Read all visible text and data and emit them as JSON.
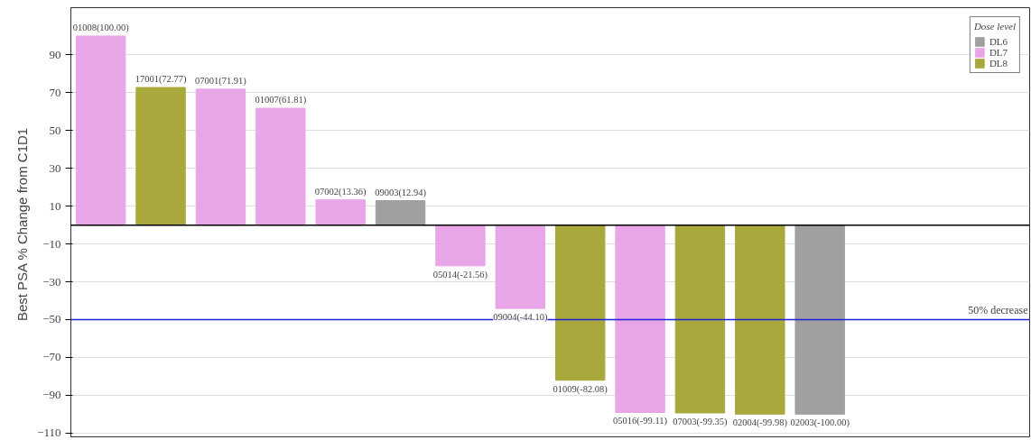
{
  "chart_data": {
    "type": "bar",
    "ylabel": "Best PSA % Change from  C1D1",
    "legend_title": "Dose level",
    "categories": [
      null,
      null,
      null,
      null,
      null,
      null,
      null,
      null,
      null,
      null,
      null,
      null,
      null,
      null,
      null,
      null
    ],
    "series": [
      {
        "name": "DL6",
        "color": "#a0a0a0",
        "values": [
          null,
          null,
          null,
          null,
          null,
          12.94,
          null,
          null,
          null,
          null,
          null,
          null,
          -100.0,
          null,
          null,
          null
        ],
        "value_labels": [
          null,
          null,
          null,
          null,
          null,
          "09003(12.94)",
          null,
          null,
          null,
          null,
          null,
          null,
          "02003(-100.00)",
          null,
          null,
          null
        ]
      },
      {
        "name": "DL7",
        "color": "#e8a6e8",
        "values": [
          100.0,
          null,
          71.91,
          61.81,
          13.36,
          null,
          -21.56,
          -44.1,
          null,
          -99.11,
          null,
          null,
          null,
          null,
          null,
          null
        ],
        "value_labels": [
          "01008(100.00)",
          null,
          "07001(71.91)",
          "01007(61.81)",
          "07002(13.36)",
          null,
          "05014(-21.56)",
          "09004(-44.10)",
          null,
          "05016(-99.11)",
          null,
          null,
          null,
          null,
          null,
          null
        ]
      },
      {
        "name": "DL8",
        "color": "#a8a83c",
        "values": [
          null,
          72.77,
          null,
          null,
          null,
          null,
          null,
          null,
          -82.08,
          null,
          -99.35,
          -99.98,
          null,
          null,
          null,
          null
        ],
        "value_labels": [
          null,
          "17001(72.77)",
          null,
          null,
          null,
          null,
          null,
          null,
          "01009(-82.08)",
          null,
          "07003(-99.35)",
          "02004(-99.98)",
          null,
          null,
          null,
          null
        ]
      }
    ],
    "ylim": [
      -112,
      115
    ],
    "yticks": [
      -110,
      -90,
      -70,
      -50,
      -30,
      -10,
      10,
      30,
      50,
      70,
      90
    ],
    "ref_lines": [
      {
        "axis": "y",
        "value": 0,
        "color": "#000000"
      },
      {
        "axis": "y",
        "value": -50,
        "label": "50% decrease",
        "color": "#2020e0"
      }
    ],
    "grid": "y",
    "legend": "top right",
    "tick_labels": "y",
    "stacked": true
  }
}
